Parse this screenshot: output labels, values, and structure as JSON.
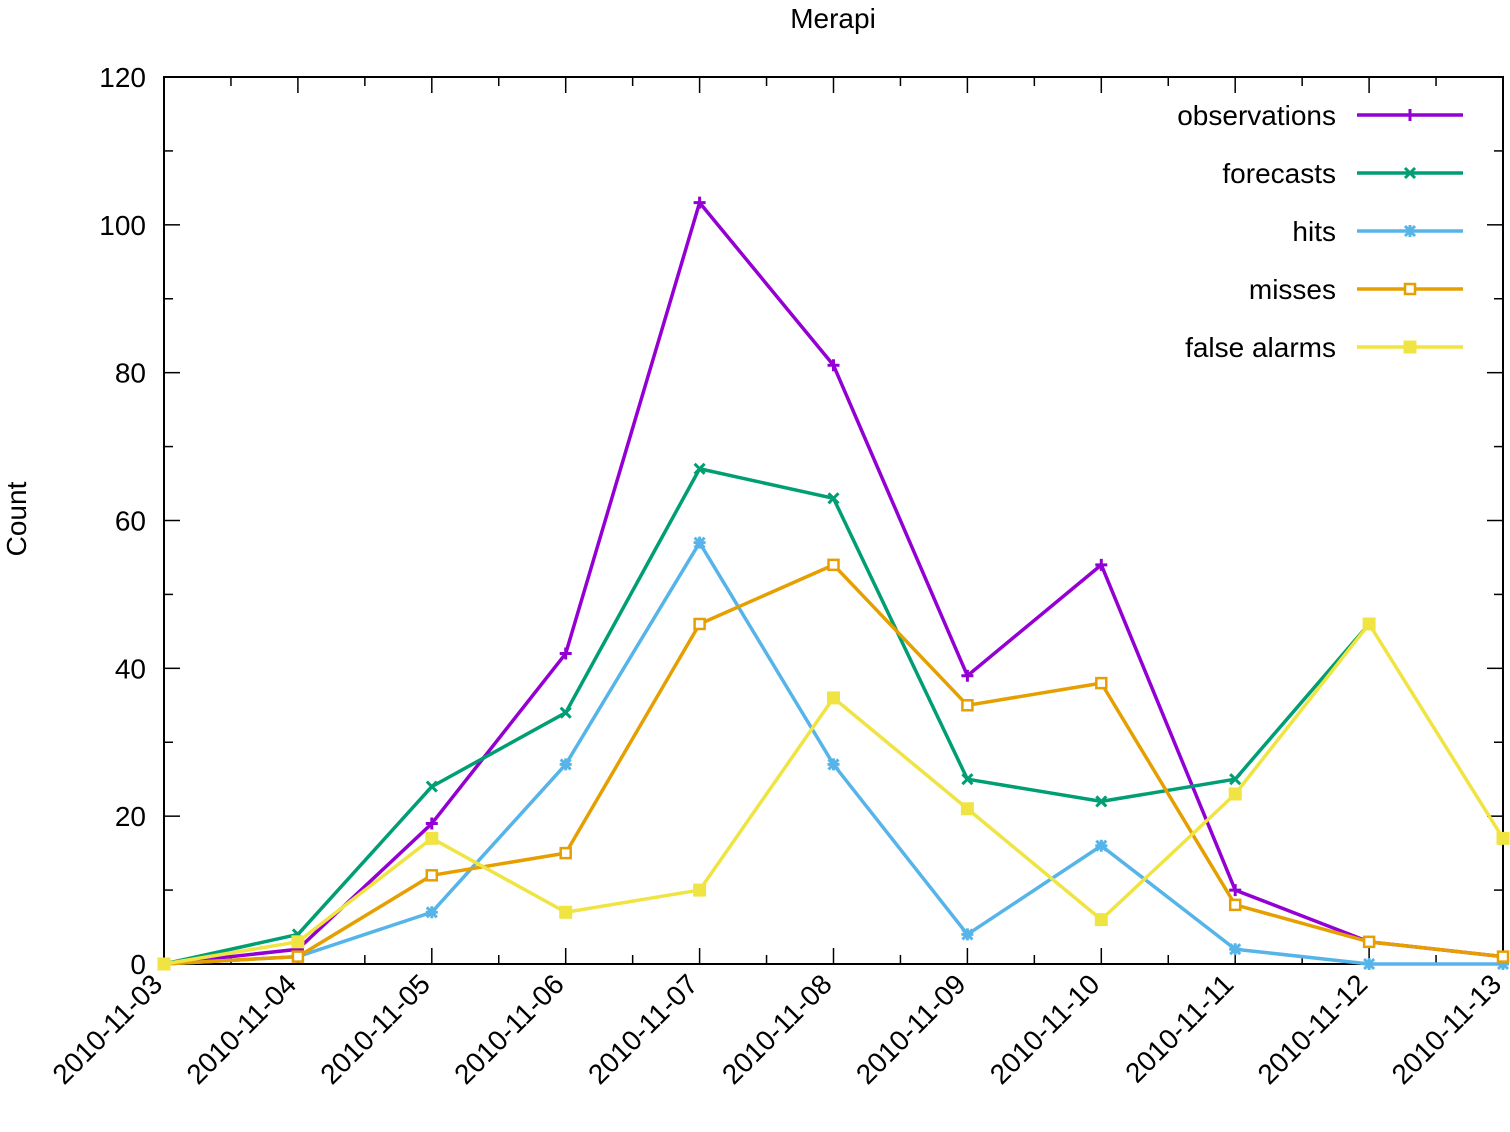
{
  "chart_data": {
    "type": "line",
    "title": "Merapi",
    "xlabel": "",
    "ylabel": "Count",
    "x": [
      "2010-11-03",
      "2010-11-04",
      "2010-11-05",
      "2010-11-06",
      "2010-11-07",
      "2010-11-08",
      "2010-11-09",
      "2010-11-10",
      "2010-11-11",
      "2010-11-12",
      "2010-11-13"
    ],
    "ylim": [
      0,
      120
    ],
    "yticks": [
      0,
      20,
      40,
      60,
      80,
      100,
      120
    ],
    "yticks_minor_step": 10,
    "grid": false,
    "legend_position": "top-right",
    "series": [
      {
        "name": "observations",
        "color": "#9400d3",
        "marker": "plus",
        "values": [
          0,
          2,
          19,
          42,
          103,
          81,
          39,
          54,
          10,
          3,
          1
        ]
      },
      {
        "name": "forecasts",
        "color": "#009e73",
        "marker": "cross",
        "values": [
          0,
          4,
          24,
          34,
          67,
          63,
          25,
          22,
          25,
          46,
          null
        ]
      },
      {
        "name": "hits",
        "color": "#56b4e9",
        "marker": "star",
        "values": [
          0,
          1,
          7,
          27,
          57,
          27,
          4,
          16,
          2,
          0,
          0
        ]
      },
      {
        "name": "misses",
        "color": "#e69f00",
        "marker": "open-square",
        "values": [
          0,
          1,
          12,
          15,
          46,
          54,
          35,
          38,
          8,
          3,
          1
        ]
      },
      {
        "name": "false alarms",
        "color": "#f0e442",
        "marker": "filled-square",
        "values": [
          0,
          3,
          17,
          7,
          10,
          36,
          21,
          6,
          23,
          46,
          17
        ]
      }
    ]
  }
}
